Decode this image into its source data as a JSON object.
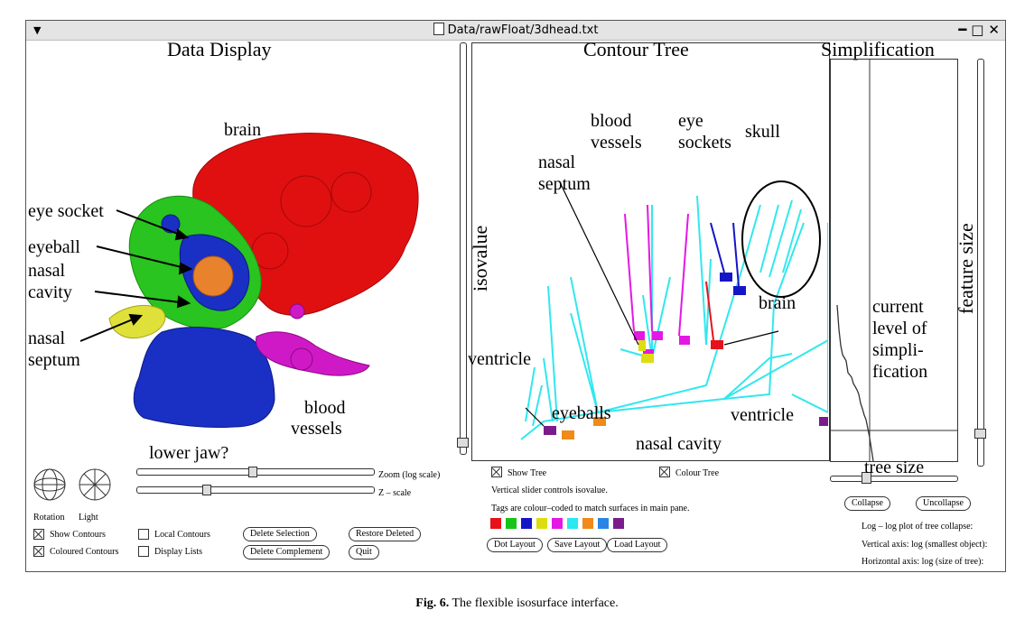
{
  "window": {
    "title": "Data/rawFloat/3dhead.txt"
  },
  "data_display": {
    "title": "Data Display",
    "labels": {
      "brain": "brain",
      "eye_socket": "eye socket",
      "eyeball": "eyeball",
      "nasal": "nasal",
      "cavity": "cavity",
      "nasal2": "nasal",
      "septum": "septum",
      "blood": "blood",
      "vessels": "vessels",
      "lower_jaw": "lower jaw?"
    },
    "zoom_label": "Zoom (log scale)",
    "z_label": "Z – scale",
    "rotation_label": "Rotation",
    "light_label": "Light",
    "show_contours": "Show Contours",
    "coloured_contours": "Coloured Contours",
    "local_contours": "Local Contours",
    "display_lists": "Display Lists",
    "delete_selection": "Delete Selection",
    "delete_complement": "Delete Complement",
    "restore_deleted": "Restore Deleted",
    "quit": "Quit",
    "colors": {
      "brain": "#e01010",
      "blue": "#1a2fc4",
      "green": "#29c41f",
      "orange": "#e8822c",
      "yellow": "#e0e03a",
      "magenta": "#d019c6"
    }
  },
  "contour_tree": {
    "title": "Contour Tree",
    "axis_label": "isovalue",
    "labels": {
      "blood": "blood",
      "vessels": "vessels",
      "eye": "eye",
      "sockets": "sockets",
      "skull": "skull",
      "nasal": "nasal",
      "septum": "septum",
      "brain": "brain",
      "ventricle_left": "ventricle",
      "eyeballs": "eyeballs",
      "ventricle_right": "ventricle",
      "nasal_cavity": "nasal cavity"
    },
    "show_tree": "Show Tree",
    "colour_tree": "Colour Tree",
    "note1": "Vertical slider controls isovalue.",
    "note2": "Tags are colour–coded to match surfaces in main pane.",
    "tag_colors": [
      "#e8101a",
      "#17c419",
      "#1515c8",
      "#dddd10",
      "#e418e4",
      "#28e8f0",
      "#f08a18",
      "#2b85e4",
      "#7a1c8c"
    ],
    "dot_layout": "Dot Layout",
    "save_layout": "Save Layout",
    "load_layout": "Load Layout",
    "tree_color": "#30e8ee"
  },
  "simplification": {
    "title": "Simplification",
    "axis_label": "feature size",
    "x_label": "tree size",
    "current_level": [
      "current",
      "level of",
      "simpli-",
      "fication"
    ],
    "collapse": "Collapse",
    "uncollapse": "Uncollapse",
    "note1": "Log – log plot of tree collapse:",
    "note2": "Vertical axis: log (smallest object):",
    "note3": "Horizontal axis: log (size of tree):"
  },
  "caption": {
    "fig": "Fig. 6.",
    "text": "The flexible isosurface interface."
  }
}
